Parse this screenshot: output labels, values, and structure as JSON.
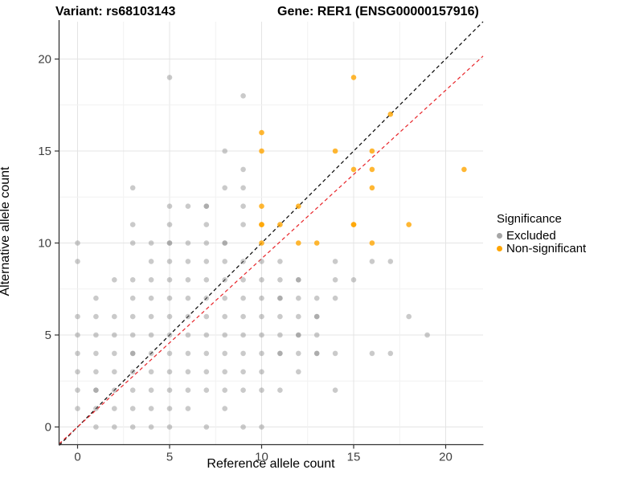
{
  "title": {
    "variant": "Variant: rs68103143",
    "gene": "Gene: RER1 (ENSG00000157916)"
  },
  "axes": {
    "x": {
      "label": "Reference allele count",
      "ticks": [
        0,
        5,
        10,
        15,
        20
      ]
    },
    "y": {
      "label": "Alternative allele count",
      "ticks": [
        0,
        5,
        10,
        15,
        20
      ]
    }
  },
  "legend": {
    "title": "Significance",
    "items": [
      {
        "label": "Excluded",
        "color": "#a6a6a6"
      },
      {
        "label": "Non-significant",
        "color": "#ffa500"
      }
    ]
  },
  "chart_data": {
    "type": "scatter",
    "title": "Variant: rs68103143 — Gene: RER1 (ENSG00000157916)",
    "xlabel": "Reference allele count",
    "ylabel": "Alternative allele count",
    "xlim": [
      -1.03,
      22.05
    ],
    "ylim": [
      -0.96,
      22.03
    ],
    "grid": {
      "spacing": 2.5,
      "major_every": 5
    },
    "series": [
      {
        "name": "Excluded",
        "color": "#8a8a8a",
        "opacity": 0.45,
        "points": [
          [
            1,
            0
          ],
          [
            2,
            0
          ],
          [
            3,
            0
          ],
          [
            4,
            0
          ],
          [
            5,
            0
          ],
          [
            7,
            0
          ],
          [
            9,
            0
          ],
          [
            10,
            0
          ],
          [
            0,
            1
          ],
          [
            1,
            1
          ],
          [
            2,
            1
          ],
          [
            3,
            1
          ],
          [
            4,
            1
          ],
          [
            5,
            1
          ],
          [
            6,
            1
          ],
          [
            8,
            1
          ],
          [
            0,
            2
          ],
          [
            1,
            2,
            2
          ],
          [
            2,
            2
          ],
          [
            3,
            2
          ],
          [
            4,
            2
          ],
          [
            5,
            2
          ],
          [
            6,
            2
          ],
          [
            7,
            2
          ],
          [
            8,
            2
          ],
          [
            9,
            2
          ],
          [
            10,
            2
          ],
          [
            11,
            2
          ],
          [
            14,
            2
          ],
          [
            0,
            3
          ],
          [
            1,
            3
          ],
          [
            2,
            3
          ],
          [
            3,
            3
          ],
          [
            4,
            3
          ],
          [
            5,
            3
          ],
          [
            6,
            3
          ],
          [
            7,
            3
          ],
          [
            8,
            3
          ],
          [
            9,
            3
          ],
          [
            10,
            3
          ],
          [
            12,
            3
          ],
          [
            0,
            4
          ],
          [
            1,
            4
          ],
          [
            2,
            4
          ],
          [
            3,
            4,
            2
          ],
          [
            4,
            4
          ],
          [
            5,
            4
          ],
          [
            6,
            4
          ],
          [
            7,
            4
          ],
          [
            8,
            4
          ],
          [
            9,
            4
          ],
          [
            10,
            4
          ],
          [
            11,
            4,
            2
          ],
          [
            12,
            4
          ],
          [
            13,
            4,
            2
          ],
          [
            14,
            4
          ],
          [
            16,
            4
          ],
          [
            17,
            4
          ],
          [
            0,
            5
          ],
          [
            1,
            5
          ],
          [
            2,
            5
          ],
          [
            3,
            5
          ],
          [
            4,
            5
          ],
          [
            5,
            5
          ],
          [
            6,
            5
          ],
          [
            7,
            5
          ],
          [
            8,
            5
          ],
          [
            9,
            5
          ],
          [
            10,
            5
          ],
          [
            11,
            5
          ],
          [
            12,
            5,
            2
          ],
          [
            13,
            5
          ],
          [
            19,
            5
          ],
          [
            0,
            6
          ],
          [
            1,
            6
          ],
          [
            2,
            6
          ],
          [
            3,
            6
          ],
          [
            4,
            6
          ],
          [
            5,
            6
          ],
          [
            6,
            6
          ],
          [
            7,
            6
          ],
          [
            8,
            6
          ],
          [
            9,
            6
          ],
          [
            10,
            6
          ],
          [
            11,
            6
          ],
          [
            12,
            6
          ],
          [
            13,
            6,
            2
          ],
          [
            18,
            6
          ],
          [
            1,
            7
          ],
          [
            3,
            7
          ],
          [
            4,
            7
          ],
          [
            5,
            7
          ],
          [
            6,
            7
          ],
          [
            7,
            7
          ],
          [
            8,
            7
          ],
          [
            9,
            7
          ],
          [
            10,
            7
          ],
          [
            11,
            7,
            2
          ],
          [
            12,
            7
          ],
          [
            13,
            7
          ],
          [
            14,
            7
          ],
          [
            2,
            8
          ],
          [
            3,
            8
          ],
          [
            4,
            8
          ],
          [
            5,
            8
          ],
          [
            6,
            8
          ],
          [
            7,
            8
          ],
          [
            8,
            8
          ],
          [
            9,
            8
          ],
          [
            10,
            8
          ],
          [
            11,
            8
          ],
          [
            12,
            8,
            2
          ],
          [
            14,
            8
          ],
          [
            15,
            8
          ],
          [
            0,
            9
          ],
          [
            4,
            9
          ],
          [
            5,
            9
          ],
          [
            6,
            9
          ],
          [
            7,
            9
          ],
          [
            8,
            9
          ],
          [
            9,
            9
          ],
          [
            10,
            9
          ],
          [
            11,
            9
          ],
          [
            14,
            9
          ],
          [
            16,
            9
          ],
          [
            17,
            9
          ],
          [
            0,
            10
          ],
          [
            3,
            10
          ],
          [
            4,
            10
          ],
          [
            5,
            10,
            2
          ],
          [
            6,
            10
          ],
          [
            7,
            10
          ],
          [
            8,
            10,
            2
          ],
          [
            3,
            11
          ],
          [
            5,
            11
          ],
          [
            7,
            11
          ],
          [
            9,
            11
          ],
          [
            5,
            12
          ],
          [
            6,
            12
          ],
          [
            7,
            12,
            2
          ],
          [
            9,
            12
          ],
          [
            3,
            13
          ],
          [
            8,
            13
          ],
          [
            9,
            13
          ],
          [
            9,
            14
          ],
          [
            8,
            15
          ],
          [
            9,
            18
          ],
          [
            5,
            19
          ]
        ]
      },
      {
        "name": "Non-significant",
        "color": "#ffa500",
        "opacity": 0.8,
        "points": [
          [
            10,
            10
          ],
          [
            12,
            10
          ],
          [
            13,
            10
          ],
          [
            16,
            10
          ],
          [
            10,
            11,
            2
          ],
          [
            11,
            11
          ],
          [
            15,
            11,
            2
          ],
          [
            18,
            11
          ],
          [
            10,
            12
          ],
          [
            12,
            12
          ],
          [
            16,
            13
          ],
          [
            15,
            14
          ],
          [
            16,
            14
          ],
          [
            21,
            14
          ],
          [
            10,
            15
          ],
          [
            14,
            15
          ],
          [
            16,
            15
          ],
          [
            10,
            16
          ],
          [
            17,
            17
          ],
          [
            15,
            19
          ]
        ]
      }
    ],
    "lines": [
      {
        "name": "identity-line",
        "color": "#000000",
        "dash": "4.5 3.5",
        "x1": -1.0,
        "y1": -1.0,
        "x2": 22.03,
        "y2": 22.03
      },
      {
        "name": "ratio-line",
        "color": "#e8252a",
        "dash": "4.5 3.5",
        "x1": -1.0,
        "y1": -0.915,
        "x2": 22.03,
        "y2": 20.16
      }
    ]
  }
}
